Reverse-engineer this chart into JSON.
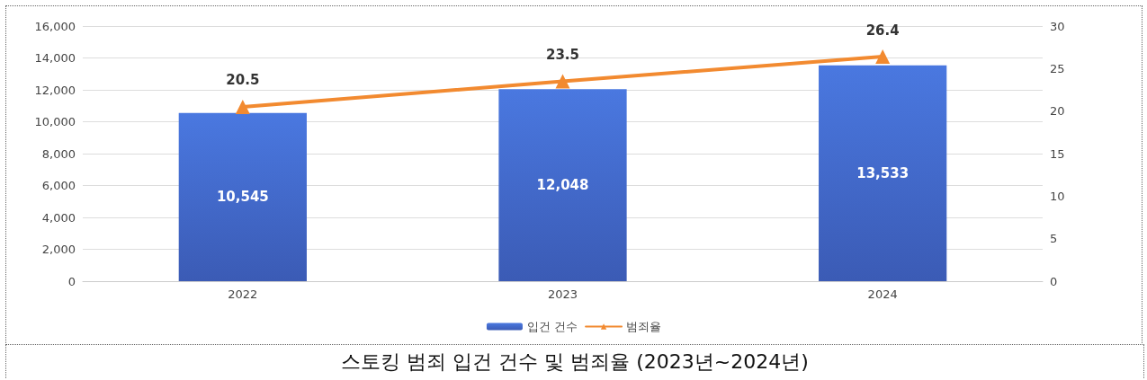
{
  "chart_data": {
    "type": "bar",
    "title": "스토킹 범죄 입건 건수 및 범죄율 (2023년~2024년)",
    "categories": [
      "2022",
      "2023",
      "2024"
    ],
    "series": [
      {
        "name": "입건 건수",
        "color": "#4a78e0",
        "values": [
          10545,
          12048,
          13533
        ],
        "value_labels": [
          "10,545",
          "12,048",
          "13,533"
        ]
      },
      {
        "name": "범죄율",
        "type": "line",
        "axis": "y2",
        "color": "#f28a30",
        "marker": "triangle",
        "values": [
          20.5,
          23.5,
          26.4
        ],
        "value_labels": [
          "20.5",
          "23.5",
          "26.4"
        ]
      }
    ],
    "ylim": [
      0,
      16000
    ],
    "yticks": [
      {
        "value": 0,
        "label": "0"
      },
      {
        "value": 2000,
        "label": "2,000"
      },
      {
        "value": 4000,
        "label": "4,000"
      },
      {
        "value": 6000,
        "label": "6,000"
      },
      {
        "value": 8000,
        "label": "8,000"
      },
      {
        "value": 10000,
        "label": "10,000"
      },
      {
        "value": 12000,
        "label": "12,000"
      },
      {
        "value": 14000,
        "label": "14,000"
      },
      {
        "value": 16000,
        "label": "16,000"
      }
    ],
    "y2lim": [
      0,
      30
    ],
    "y2ticks": [
      0,
      5,
      10,
      15,
      20,
      25,
      30
    ],
    "grid": "y",
    "legend": "bottom"
  }
}
